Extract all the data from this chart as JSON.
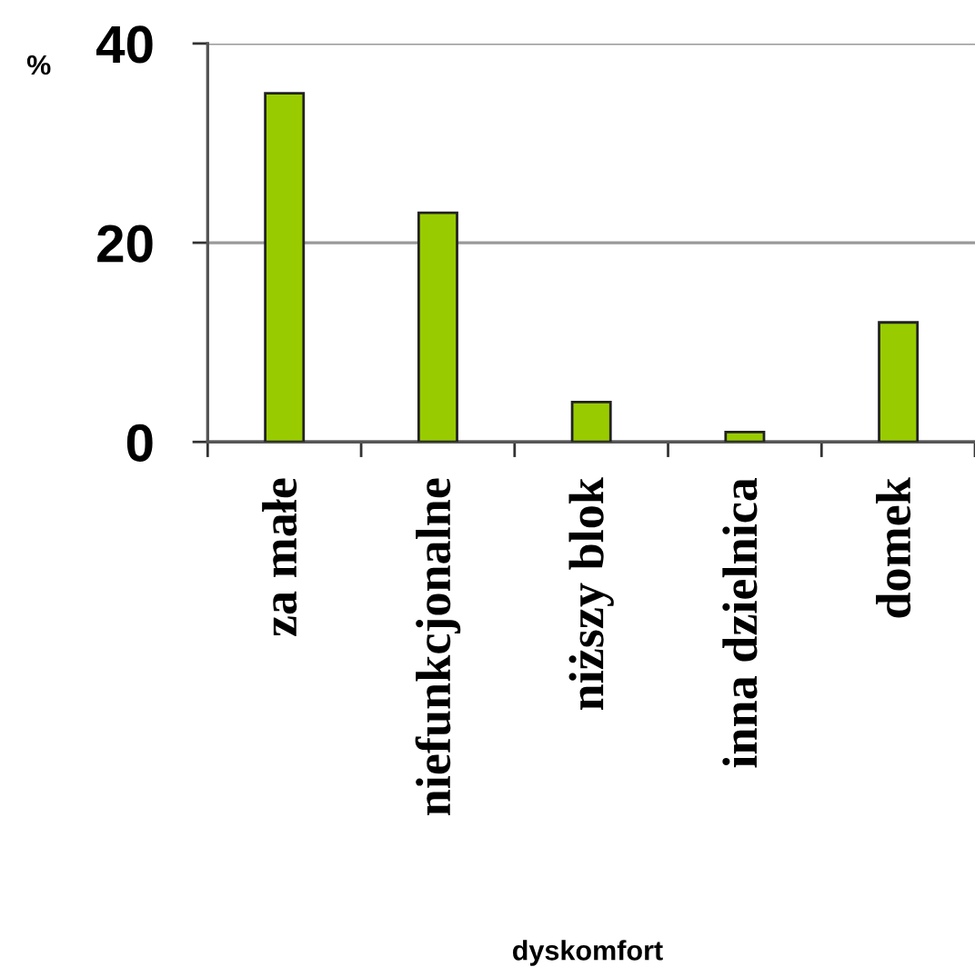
{
  "chart_data": {
    "type": "bar",
    "xlabel": "dyskomfort",
    "ylabel": "%",
    "categories": [
      "za małe",
      "niefunkcjonalne",
      "niższy blok",
      "inna dzielnica",
      "domek"
    ],
    "values": [
      35,
      23,
      4,
      1,
      12
    ],
    "color": "#99cc00",
    "ylim": [
      0,
      40
    ],
    "yticks": [
      0,
      20,
      40
    ],
    "grid": "y"
  }
}
